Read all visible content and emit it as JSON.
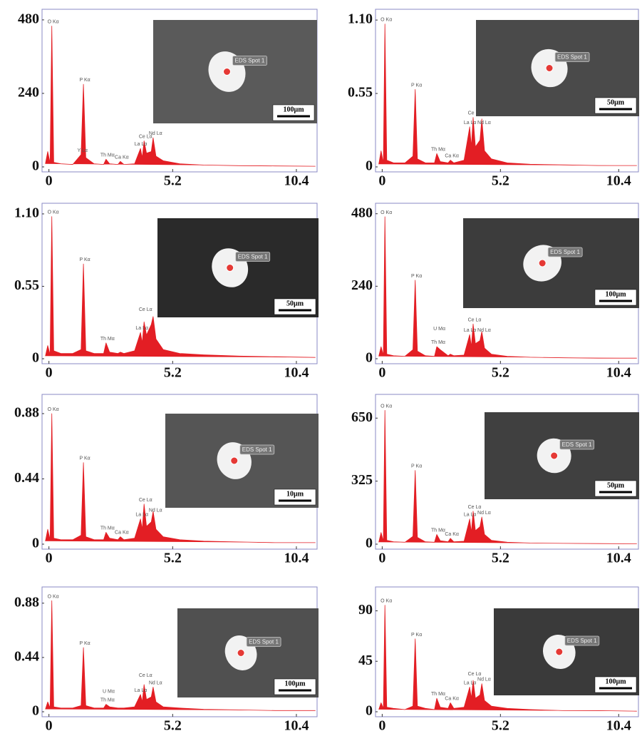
{
  "chart_data": [
    {
      "type": "area",
      "color": "#e31e24",
      "x": [
        -0.15,
        -0.05,
        0.05,
        0.12,
        0.2,
        0.5,
        1.0,
        1.35,
        1.45,
        1.55,
        1.9,
        2.3,
        2.4,
        2.55,
        2.9,
        3.0,
        3.15,
        3.6,
        3.85,
        3.92,
        4.0,
        4.1,
        4.3,
        4.38,
        4.5,
        4.8,
        5.5,
        6.5,
        8,
        9.5,
        11.2
      ],
      "values": [
        10,
        50,
        12,
        460,
        15,
        10,
        8,
        40,
        270,
        30,
        10,
        8,
        25,
        10,
        8,
        18,
        8,
        10,
        60,
        30,
        85,
        45,
        50,
        95,
        35,
        20,
        10,
        6,
        4,
        3,
        2
      ],
      "xlim": [
        -0.2,
        11.3
      ],
      "ylim": [
        0,
        510
      ],
      "xticks": [
        0,
        5.2,
        10.4
      ],
      "yticks": [
        0,
        240,
        480
      ],
      "annotations": [
        {
          "text": "O Kα",
          "x": 0.12,
          "y": 460
        },
        {
          "text": "P Kα",
          "x": 1.45,
          "y": 270
        },
        {
          "text": "Y Lα",
          "x": 1.35,
          "y": 40
        },
        {
          "text": "Th Mα",
          "x": 2.4,
          "y": 25
        },
        {
          "text": "Ca Kα",
          "x": 3.0,
          "y": 18
        },
        {
          "text": "La Lα",
          "x": 3.8,
          "y": 60
        },
        {
          "text": "Ce Lα",
          "x": 4.0,
          "y": 85
        },
        {
          "text": "Nd Lα",
          "x": 4.42,
          "y": 95
        }
      ],
      "inset": {
        "spot_label": "EDS Spot 1",
        "scale_bar": "100µm"
      }
    },
    {
      "type": "area",
      "color": "#e31e24",
      "x": [
        -0.15,
        -0.05,
        0.05,
        0.12,
        0.2,
        0.5,
        1.0,
        1.35,
        1.45,
        1.55,
        1.9,
        2.3,
        2.4,
        2.55,
        2.9,
        3.0,
        3.15,
        3.6,
        3.85,
        3.92,
        4.0,
        4.1,
        4.3,
        4.38,
        4.5,
        4.8,
        5.5,
        6.5,
        8,
        9.5,
        11.2
      ],
      "values": [
        0.02,
        0.12,
        0.03,
        1.07,
        0.05,
        0.03,
        0.03,
        0.08,
        0.58,
        0.06,
        0.03,
        0.03,
        0.1,
        0.04,
        0.03,
        0.05,
        0.03,
        0.05,
        0.3,
        0.15,
        0.37,
        0.15,
        0.2,
        0.36,
        0.12,
        0.06,
        0.03,
        0.02,
        0.015,
        0.01,
        0.01
      ],
      "xlim": [
        -0.2,
        11.3
      ],
      "ylim": [
        0,
        1.17
      ],
      "xticks": [
        0,
        5.2,
        10.4
      ],
      "yticks": [
        0,
        0.55,
        {
          "value": 1.1,
          "label": "1.10"
        }
      ],
      "annotations": [
        {
          "text": "O Kα",
          "x": 0.12,
          "y": 1.07
        },
        {
          "text": "P Kα",
          "x": 1.45,
          "y": 0.58
        },
        {
          "text": "Th Mα",
          "x": 2.4,
          "y": 0.1
        },
        {
          "text": "Ca Kα",
          "x": 3.0,
          "y": 0.05
        },
        {
          "text": "La Lα",
          "x": 3.8,
          "y": 0.3
        },
        {
          "text": "Ce Lα",
          "x": 4.0,
          "y": 0.37
        },
        {
          "text": "Nd Lα",
          "x": 4.42,
          "y": 0.3
        }
      ],
      "inset": {
        "spot_label": "EDS Spot 1",
        "scale_bar": "50µm"
      }
    },
    {
      "type": "area",
      "color": "#e31e24",
      "x": [
        -0.15,
        -0.05,
        0.05,
        0.12,
        0.2,
        0.5,
        1.0,
        1.35,
        1.45,
        1.55,
        1.9,
        2.3,
        2.4,
        2.55,
        2.9,
        3.0,
        3.15,
        3.6,
        3.85,
        3.92,
        4.0,
        4.1,
        4.3,
        4.38,
        4.5,
        4.8,
        5.5,
        6.5,
        8,
        9.5,
        11.2
      ],
      "values": [
        0.02,
        0.1,
        0.03,
        1.08,
        0.06,
        0.04,
        0.04,
        0.07,
        0.72,
        0.06,
        0.04,
        0.04,
        0.12,
        0.05,
        0.04,
        0.05,
        0.04,
        0.06,
        0.2,
        0.12,
        0.28,
        0.18,
        0.26,
        0.32,
        0.15,
        0.07,
        0.04,
        0.03,
        0.02,
        0.015,
        0.01
      ],
      "xlim": [
        -0.2,
        11.3
      ],
      "ylim": [
        0,
        1.17
      ],
      "xticks": [
        0,
        5.2,
        10.4
      ],
      "yticks": [
        0,
        0.55,
        {
          "value": 1.1,
          "label": "1.10"
        }
      ],
      "annotations": [
        {
          "text": "O Kα",
          "x": 0.12,
          "y": 1.08
        },
        {
          "text": "P Kα",
          "x": 1.45,
          "y": 0.72
        },
        {
          "text": "Th Mα",
          "x": 2.4,
          "y": 0.12
        },
        {
          "text": "La Lα",
          "x": 3.85,
          "y": 0.2
        },
        {
          "text": "Ce Lα",
          "x": 4.0,
          "y": 0.34
        }
      ],
      "inset": {
        "spot_label": "EDS Spot 1",
        "scale_bar": "50µm"
      }
    },
    {
      "type": "area",
      "color": "#e31e24",
      "x": [
        -0.15,
        -0.05,
        0.05,
        0.12,
        0.2,
        0.5,
        1.0,
        1.35,
        1.45,
        1.55,
        1.9,
        2.3,
        2.4,
        2.55,
        2.9,
        3.0,
        3.15,
        3.6,
        3.85,
        3.92,
        4.0,
        4.1,
        4.3,
        4.38,
        4.5,
        4.8,
        5.5,
        6.5,
        8,
        9.5,
        11.2
      ],
      "values": [
        8,
        40,
        12,
        470,
        15,
        10,
        8,
        30,
        260,
        25,
        10,
        8,
        40,
        30,
        10,
        15,
        10,
        12,
        80,
        40,
        115,
        50,
        60,
        90,
        35,
        15,
        8,
        5,
        3,
        2,
        2
      ],
      "xlim": [
        -0.2,
        11.3
      ],
      "ylim": [
        0,
        510
      ],
      "xticks": [
        0,
        5.2,
        10.4
      ],
      "yticks": [
        0,
        240,
        480
      ],
      "annotations": [
        {
          "text": "O Kα",
          "x": 0.12,
          "y": 470
        },
        {
          "text": "P Kα",
          "x": 1.45,
          "y": 260
        },
        {
          "text": "U Mα",
          "x": 2.45,
          "y": 85
        },
        {
          "text": "Th Mα",
          "x": 2.4,
          "y": 40
        },
        {
          "text": "La Lα",
          "x": 3.8,
          "y": 80
        },
        {
          "text": "Ce Lα",
          "x": 4.0,
          "y": 115
        },
        {
          "text": "Nd Lα",
          "x": 4.42,
          "y": 80
        }
      ],
      "inset": {
        "spot_label": "EDS Spot 1",
        "scale_bar": "100µm"
      }
    },
    {
      "type": "area",
      "color": "#e31e24",
      "x": [
        -0.15,
        -0.05,
        0.05,
        0.12,
        0.2,
        0.5,
        1.0,
        1.35,
        1.45,
        1.55,
        1.9,
        2.3,
        2.4,
        2.55,
        2.9,
        3.0,
        3.15,
        3.6,
        3.85,
        3.92,
        4.0,
        4.1,
        4.3,
        4.38,
        4.5,
        4.8,
        5.5,
        6.5,
        8,
        9.5,
        11.2
      ],
      "values": [
        0.02,
        0.1,
        0.03,
        0.88,
        0.04,
        0.03,
        0.03,
        0.06,
        0.55,
        0.05,
        0.03,
        0.03,
        0.08,
        0.04,
        0.03,
        0.05,
        0.03,
        0.04,
        0.17,
        0.1,
        0.27,
        0.12,
        0.15,
        0.22,
        0.1,
        0.05,
        0.03,
        0.02,
        0.015,
        0.01,
        0.01
      ],
      "xlim": [
        -0.2,
        11.3
      ],
      "ylim": [
        0,
        1.0
      ],
      "xticks": [
        0,
        5.2,
        10.4
      ],
      "yticks": [
        0,
        0.44,
        0.88
      ],
      "annotations": [
        {
          "text": "O Kα",
          "x": 0.12,
          "y": 0.88
        },
        {
          "text": "P Kα",
          "x": 1.45,
          "y": 0.55
        },
        {
          "text": "Th Mα",
          "x": 2.4,
          "y": 0.08
        },
        {
          "text": "Ca Kα",
          "x": 3.0,
          "y": 0.05
        },
        {
          "text": "La Lα",
          "x": 3.85,
          "y": 0.17
        },
        {
          "text": "Ce Lα",
          "x": 4.0,
          "y": 0.27
        },
        {
          "text": "Nd Lα",
          "x": 4.42,
          "y": 0.2
        }
      ],
      "inset": {
        "spot_label": "EDS Spot 1",
        "scale_bar": "10µm"
      }
    },
    {
      "type": "area",
      "color": "#e31e24",
      "x": [
        -0.15,
        -0.05,
        0.05,
        0.12,
        0.2,
        0.5,
        1.0,
        1.35,
        1.45,
        1.55,
        1.9,
        2.3,
        2.4,
        2.55,
        2.9,
        3.0,
        3.15,
        3.6,
        3.85,
        3.92,
        4.0,
        4.1,
        4.3,
        4.38,
        4.5,
        4.8,
        5.5,
        6.5,
        8,
        9.5,
        11.2
      ],
      "values": [
        10,
        60,
        15,
        690,
        20,
        12,
        10,
        40,
        380,
        35,
        12,
        10,
        50,
        18,
        12,
        30,
        12,
        15,
        130,
        60,
        170,
        70,
        90,
        140,
        50,
        20,
        10,
        6,
        4,
        3,
        2
      ],
      "xlim": [
        -0.2,
        11.3
      ],
      "ylim": [
        0,
        765
      ],
      "xticks": [
        0,
        5.2,
        10.4
      ],
      "yticks": [
        0,
        325,
        650
      ],
      "annotations": [
        {
          "text": "O Kα",
          "x": 0.12,
          "y": 690
        },
        {
          "text": "P Kα",
          "x": 1.45,
          "y": 380
        },
        {
          "text": "Th Mα",
          "x": 2.4,
          "y": 50
        },
        {
          "text": "Ca Kα",
          "x": 3.0,
          "y": 30
        },
        {
          "text": "La Lα",
          "x": 3.8,
          "y": 130
        },
        {
          "text": "Ce Lα",
          "x": 4.0,
          "y": 170
        },
        {
          "text": "Nd Lα",
          "x": 4.42,
          "y": 140
        }
      ],
      "inset": {
        "spot_label": "EDS Spot 1",
        "scale_bar": "50µm"
      }
    },
    {
      "type": "area",
      "color": "#e31e24",
      "x": [
        -0.15,
        -0.05,
        0.05,
        0.12,
        0.2,
        0.5,
        1.0,
        1.35,
        1.45,
        1.55,
        1.9,
        2.3,
        2.4,
        2.55,
        2.9,
        3.0,
        3.15,
        3.6,
        3.85,
        3.92,
        4.0,
        4.1,
        4.3,
        4.38,
        4.5,
        4.8,
        5.5,
        6.5,
        8,
        9.5,
        11.2
      ],
      "values": [
        0.02,
        0.08,
        0.03,
        0.9,
        0.04,
        0.03,
        0.03,
        0.05,
        0.52,
        0.05,
        0.03,
        0.03,
        0.06,
        0.04,
        0.03,
        0.03,
        0.03,
        0.04,
        0.14,
        0.08,
        0.22,
        0.1,
        0.12,
        0.2,
        0.08,
        0.04,
        0.03,
        0.02,
        0.015,
        0.01,
        0.01
      ],
      "xlim": [
        -0.2,
        11.3
      ],
      "ylim": [
        0,
        1.0
      ],
      "xticks": [
        0,
        5.2,
        10.4
      ],
      "yticks": [
        0,
        0.44,
        0.88
      ],
      "annotations": [
        {
          "text": "O Kα",
          "x": 0.12,
          "y": 0.9
        },
        {
          "text": "P Kα",
          "x": 1.45,
          "y": 0.52
        },
        {
          "text": "U Mα",
          "x": 2.45,
          "y": 0.13
        },
        {
          "text": "Th Mα",
          "x": 2.4,
          "y": 0.06
        },
        {
          "text": "La Lα",
          "x": 3.8,
          "y": 0.14
        },
        {
          "text": "Ce Lα",
          "x": 4.0,
          "y": 0.26
        },
        {
          "text": "Nd Lα",
          "x": 4.42,
          "y": 0.2
        }
      ],
      "inset": {
        "spot_label": "EDS Spot 1",
        "scale_bar": "100µm"
      }
    },
    {
      "type": "area",
      "color": "#e31e24",
      "x": [
        -0.15,
        -0.05,
        0.05,
        0.12,
        0.2,
        0.5,
        1.0,
        1.35,
        1.45,
        1.55,
        1.9,
        2.3,
        2.4,
        2.55,
        2.9,
        3.0,
        3.15,
        3.6,
        3.85,
        3.92,
        4.0,
        4.1,
        4.3,
        4.38,
        4.5,
        4.8,
        5.5,
        6.5,
        8,
        9.5,
        11.2
      ],
      "values": [
        2,
        8,
        3,
        95,
        4,
        3,
        2,
        5,
        65,
        5,
        3,
        2,
        12,
        4,
        3,
        8,
        3,
        4,
        22,
        12,
        28,
        12,
        15,
        25,
        10,
        5,
        3,
        2,
        1,
        1,
        0.5
      ],
      "xlim": [
        -0.2,
        11.3
      ],
      "ylim": [
        0,
        110
      ],
      "xticks": [
        0,
        5.2,
        10.4
      ],
      "yticks": [
        0,
        45,
        90
      ],
      "annotations": [
        {
          "text": "O Kα",
          "x": 0.12,
          "y": 95
        },
        {
          "text": "P Kα",
          "x": 1.45,
          "y": 65
        },
        {
          "text": "Th Mα",
          "x": 2.4,
          "y": 12
        },
        {
          "text": "Ca Kα",
          "x": 3.0,
          "y": 8
        },
        {
          "text": "La Lα",
          "x": 3.8,
          "y": 22
        },
        {
          "text": "Ce Lα",
          "x": 4.0,
          "y": 30
        },
        {
          "text": "Nd Lα",
          "x": 4.42,
          "y": 25
        }
      ],
      "inset": {
        "spot_label": "EDS Spot 1",
        "scale_bar": "100µm"
      }
    }
  ]
}
